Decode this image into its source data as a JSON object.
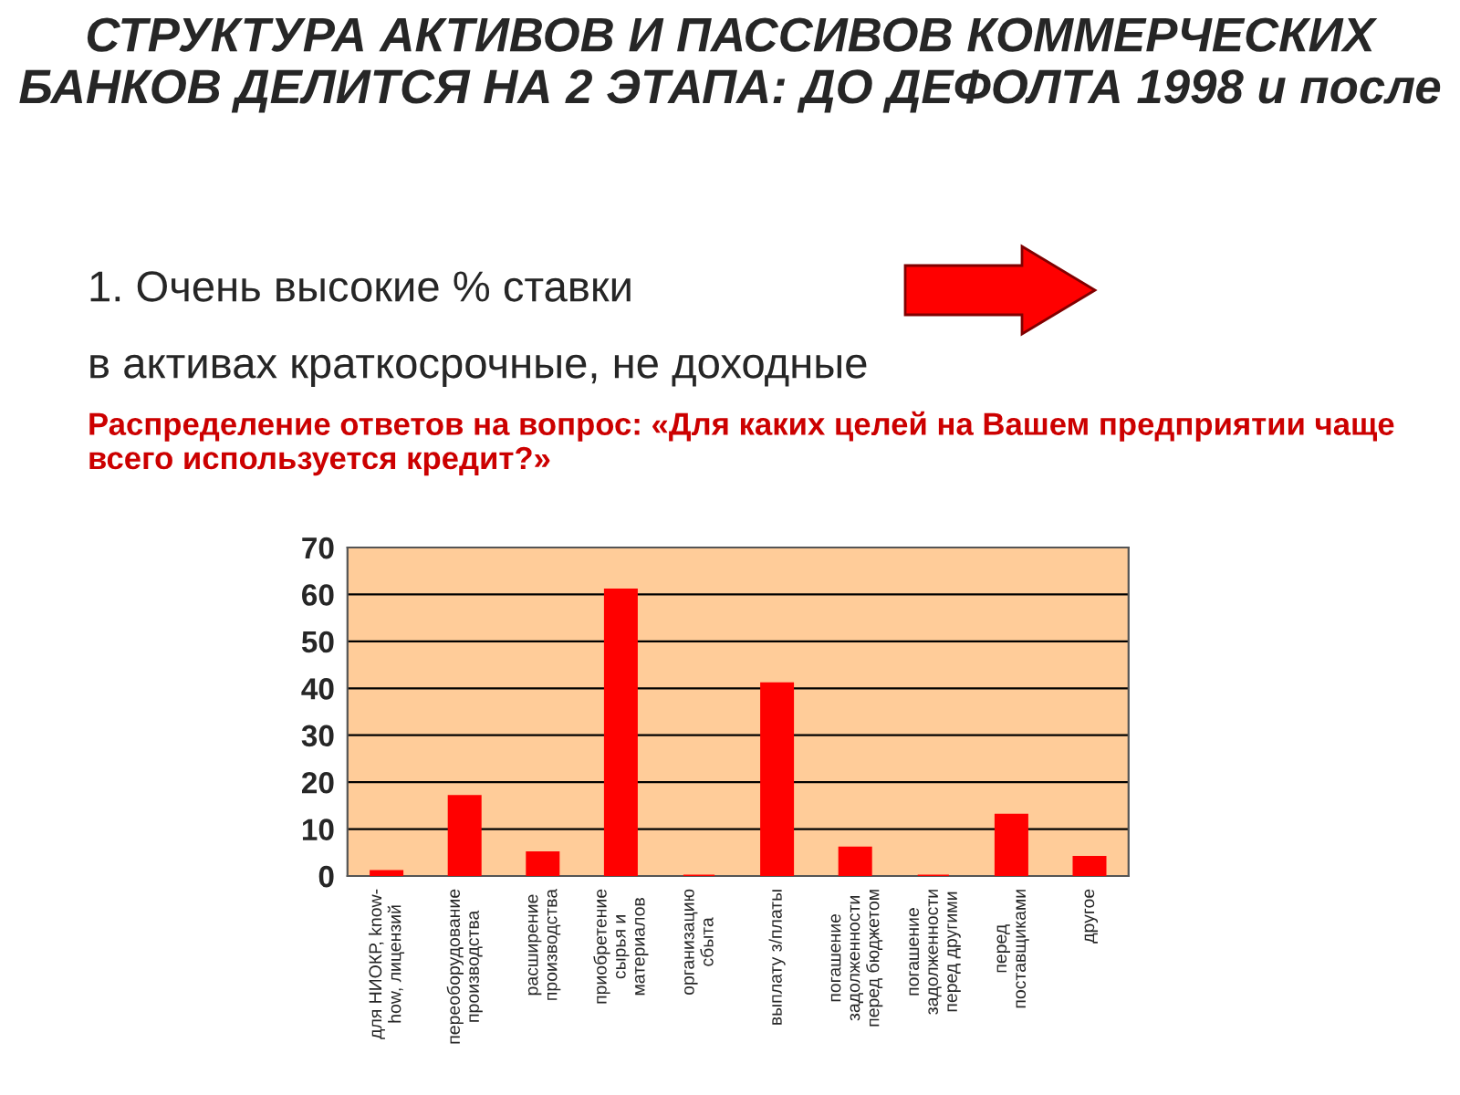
{
  "chart_data": {
    "type": "bar",
    "title": "СТРУКТУРА АКТИВОВ И ПАССИВОВ КОММЕРЧЕСКИХ БАНКОВ ДЕЛИТСЯ НА 2 ЭТАПА: ДО ДЕФОЛТА 1998 и после",
    "subtitle": "Распределение ответов на вопрос: «Для каких целей на Вашем предприятии чаще всего используется кредит?»",
    "annotations": [
      "1. Очень высокие % ставки",
      "в активах краткосрочные, не доходные"
    ],
    "categories": [
      "для НИОКР, know-\nhow, лицензий",
      "переоборудование\nпроизводства",
      "расширение\nпроизводства",
      "приобретение\nсырья и\nматериалов",
      "организацию\nсбыта",
      "выплату з/платы",
      "погашение\nзадолженности\nперед бюджетом",
      "погашение\nзадолженности\nперед другими",
      "перед\nпоставщиками",
      "другое"
    ],
    "values": [
      1,
      17,
      5,
      61,
      0,
      41,
      6,
      0,
      13,
      4
    ],
    "color": "#ff0000",
    "ylim": [
      0,
      70
    ],
    "yticks": [
      0,
      10,
      20,
      30,
      40,
      50,
      60,
      70
    ],
    "grid": "y"
  }
}
